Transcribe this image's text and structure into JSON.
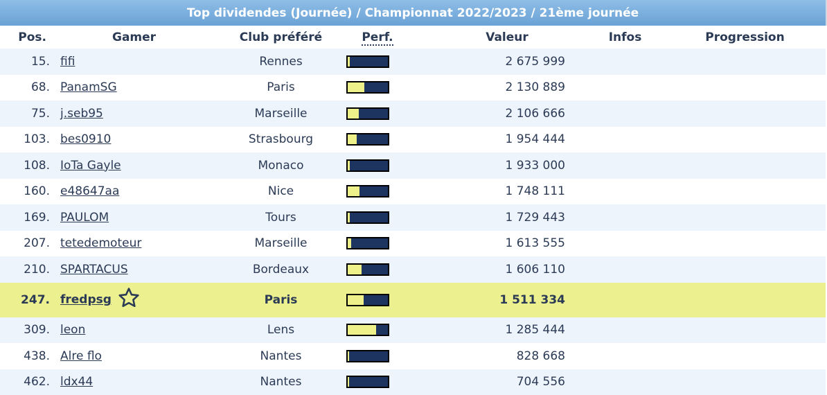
{
  "title": "Top dividendes (Journée) / Championnat 2022/2023 / 21ème journée",
  "columns": {
    "pos": "Pos.",
    "gamer": "Gamer",
    "club": "Club préféré",
    "perf": "Perf.",
    "value": "Valeur",
    "infos": "Infos",
    "progression": "Progression"
  },
  "rows": [
    {
      "pos": "15.",
      "gamer": "fifi",
      "club": "Rennes",
      "perf": 0.05,
      "value": "2 675 999",
      "highlight": false
    },
    {
      "pos": "68.",
      "gamer": "PanamSG",
      "club": "Paris",
      "perf": 0.42,
      "value": "2 130 889",
      "highlight": false
    },
    {
      "pos": "75.",
      "gamer": "j.seb95",
      "club": "Marseille",
      "perf": 0.28,
      "value": "2 106 666",
      "highlight": false
    },
    {
      "pos": "103.",
      "gamer": "bes0910",
      "club": "Strasbourg",
      "perf": 0.22,
      "value": "1 954 444",
      "highlight": false
    },
    {
      "pos": "108.",
      "gamer": "IoTa Gayle",
      "club": "Monaco",
      "perf": 0.05,
      "value": "1 933 000",
      "highlight": false
    },
    {
      "pos": "160.",
      "gamer": "e48647aa",
      "club": "Nice",
      "perf": 0.3,
      "value": "1 748 111",
      "highlight": false
    },
    {
      "pos": "169.",
      "gamer": "PAULOM",
      "club": "Tours",
      "perf": 0.06,
      "value": "1 729 443",
      "highlight": false
    },
    {
      "pos": "207.",
      "gamer": "tetedemoteur",
      "club": "Marseille",
      "perf": 0.08,
      "value": "1 613 555",
      "highlight": false
    },
    {
      "pos": "210.",
      "gamer": "SPARTACUS",
      "club": "Bordeaux",
      "perf": 0.35,
      "value": "1 606 110",
      "highlight": false
    },
    {
      "pos": "247.",
      "gamer": "fredpsg",
      "club": "Paris",
      "perf": 0.4,
      "value": "1 511 334",
      "highlight": true,
      "icon": "star-icon"
    },
    {
      "pos": "309.",
      "gamer": "leon",
      "club": "Lens",
      "perf": 0.7,
      "value": "1 285 444",
      "highlight": false
    },
    {
      "pos": "438.",
      "gamer": "Alre flo",
      "club": "Nantes",
      "perf": 0.04,
      "value": "828 668",
      "highlight": false
    },
    {
      "pos": "462.",
      "gamer": "ldx44",
      "club": "Nantes",
      "perf": 0.04,
      "value": "704 556",
      "highlight": false
    }
  ]
}
